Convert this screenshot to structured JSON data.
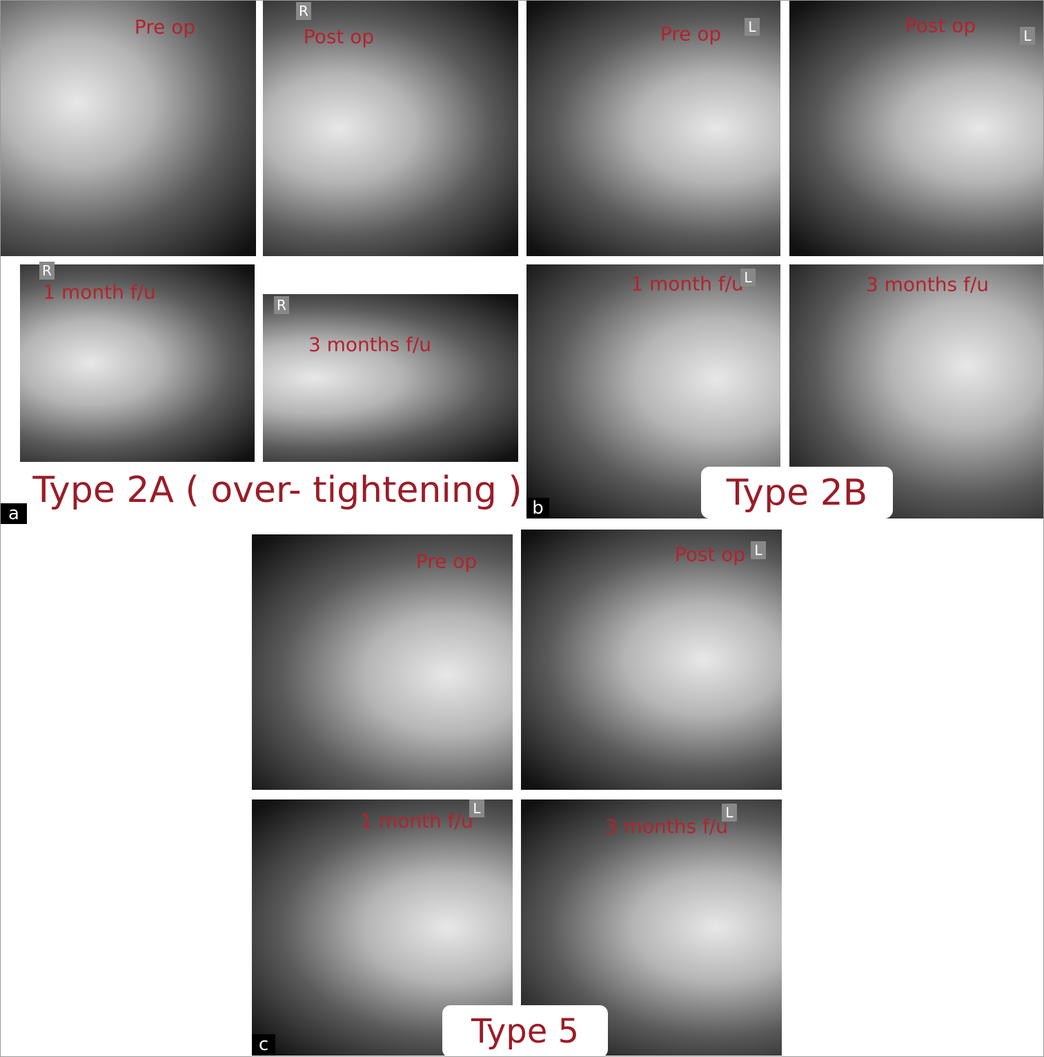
{
  "panels": [
    {
      "letter": "a",
      "caption": "Type 2A ( over- tightening )",
      "images": [
        {
          "label": "Pre op"
        },
        {
          "label": "Post op",
          "marker": "R"
        },
        {
          "label": "1 month f/u",
          "marker": "R"
        },
        {
          "label": "3 months f/u",
          "marker": "R"
        }
      ]
    },
    {
      "letter": "b",
      "caption": "Type 2B",
      "images": [
        {
          "label": "Pre op",
          "marker": "L"
        },
        {
          "label": "Post op",
          "marker": "L"
        },
        {
          "label": "1 month f/u",
          "marker": "L"
        },
        {
          "label": "3 months f/u"
        }
      ]
    },
    {
      "letter": "c",
      "caption": "Type 5",
      "images": [
        {
          "label": "Pre op"
        },
        {
          "label": "Post op",
          "marker": "L"
        },
        {
          "label": "1 month f/u",
          "marker": "L"
        },
        {
          "label": "3 months f/u",
          "marker": "L"
        }
      ]
    }
  ]
}
